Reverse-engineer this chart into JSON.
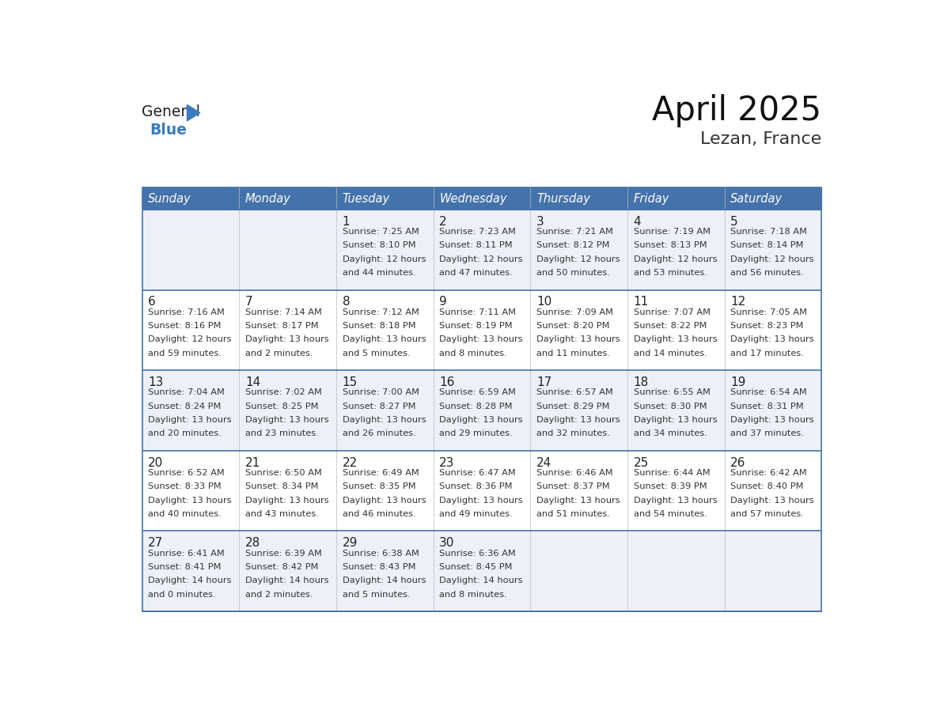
{
  "title": "April 2025",
  "subtitle": "Lezan, France",
  "header_color": "#4472aa",
  "header_text_color": "#ffffff",
  "odd_row_bg": "#edf1f7",
  "even_row_bg": "#ffffff",
  "border_color": "#4472aa",
  "row_line_color": "#4472aa",
  "text_color": "#222222",
  "info_text_color": "#333333",
  "days_of_week": [
    "Sunday",
    "Monday",
    "Tuesday",
    "Wednesday",
    "Thursday",
    "Friday",
    "Saturday"
  ],
  "logo_general_color": "#222222",
  "logo_blue_color": "#3a7abf",
  "logo_triangle_color": "#3a7abf",
  "weeks": [
    [
      {
        "day": "",
        "info": ""
      },
      {
        "day": "",
        "info": ""
      },
      {
        "day": "1",
        "info": "Sunrise: 7:25 AM\nSunset: 8:10 PM\nDaylight: 12 hours\nand 44 minutes."
      },
      {
        "day": "2",
        "info": "Sunrise: 7:23 AM\nSunset: 8:11 PM\nDaylight: 12 hours\nand 47 minutes."
      },
      {
        "day": "3",
        "info": "Sunrise: 7:21 AM\nSunset: 8:12 PM\nDaylight: 12 hours\nand 50 minutes."
      },
      {
        "day": "4",
        "info": "Sunrise: 7:19 AM\nSunset: 8:13 PM\nDaylight: 12 hours\nand 53 minutes."
      },
      {
        "day": "5",
        "info": "Sunrise: 7:18 AM\nSunset: 8:14 PM\nDaylight: 12 hours\nand 56 minutes."
      }
    ],
    [
      {
        "day": "6",
        "info": "Sunrise: 7:16 AM\nSunset: 8:16 PM\nDaylight: 12 hours\nand 59 minutes."
      },
      {
        "day": "7",
        "info": "Sunrise: 7:14 AM\nSunset: 8:17 PM\nDaylight: 13 hours\nand 2 minutes."
      },
      {
        "day": "8",
        "info": "Sunrise: 7:12 AM\nSunset: 8:18 PM\nDaylight: 13 hours\nand 5 minutes."
      },
      {
        "day": "9",
        "info": "Sunrise: 7:11 AM\nSunset: 8:19 PM\nDaylight: 13 hours\nand 8 minutes."
      },
      {
        "day": "10",
        "info": "Sunrise: 7:09 AM\nSunset: 8:20 PM\nDaylight: 13 hours\nand 11 minutes."
      },
      {
        "day": "11",
        "info": "Sunrise: 7:07 AM\nSunset: 8:22 PM\nDaylight: 13 hours\nand 14 minutes."
      },
      {
        "day": "12",
        "info": "Sunrise: 7:05 AM\nSunset: 8:23 PM\nDaylight: 13 hours\nand 17 minutes."
      }
    ],
    [
      {
        "day": "13",
        "info": "Sunrise: 7:04 AM\nSunset: 8:24 PM\nDaylight: 13 hours\nand 20 minutes."
      },
      {
        "day": "14",
        "info": "Sunrise: 7:02 AM\nSunset: 8:25 PM\nDaylight: 13 hours\nand 23 minutes."
      },
      {
        "day": "15",
        "info": "Sunrise: 7:00 AM\nSunset: 8:27 PM\nDaylight: 13 hours\nand 26 minutes."
      },
      {
        "day": "16",
        "info": "Sunrise: 6:59 AM\nSunset: 8:28 PM\nDaylight: 13 hours\nand 29 minutes."
      },
      {
        "day": "17",
        "info": "Sunrise: 6:57 AM\nSunset: 8:29 PM\nDaylight: 13 hours\nand 32 minutes."
      },
      {
        "day": "18",
        "info": "Sunrise: 6:55 AM\nSunset: 8:30 PM\nDaylight: 13 hours\nand 34 minutes."
      },
      {
        "day": "19",
        "info": "Sunrise: 6:54 AM\nSunset: 8:31 PM\nDaylight: 13 hours\nand 37 minutes."
      }
    ],
    [
      {
        "day": "20",
        "info": "Sunrise: 6:52 AM\nSunset: 8:33 PM\nDaylight: 13 hours\nand 40 minutes."
      },
      {
        "day": "21",
        "info": "Sunrise: 6:50 AM\nSunset: 8:34 PM\nDaylight: 13 hours\nand 43 minutes."
      },
      {
        "day": "22",
        "info": "Sunrise: 6:49 AM\nSunset: 8:35 PM\nDaylight: 13 hours\nand 46 minutes."
      },
      {
        "day": "23",
        "info": "Sunrise: 6:47 AM\nSunset: 8:36 PM\nDaylight: 13 hours\nand 49 minutes."
      },
      {
        "day": "24",
        "info": "Sunrise: 6:46 AM\nSunset: 8:37 PM\nDaylight: 13 hours\nand 51 minutes."
      },
      {
        "day": "25",
        "info": "Sunrise: 6:44 AM\nSunset: 8:39 PM\nDaylight: 13 hours\nand 54 minutes."
      },
      {
        "day": "26",
        "info": "Sunrise: 6:42 AM\nSunset: 8:40 PM\nDaylight: 13 hours\nand 57 minutes."
      }
    ],
    [
      {
        "day": "27",
        "info": "Sunrise: 6:41 AM\nSunset: 8:41 PM\nDaylight: 14 hours\nand 0 minutes."
      },
      {
        "day": "28",
        "info": "Sunrise: 6:39 AM\nSunset: 8:42 PM\nDaylight: 14 hours\nand 2 minutes."
      },
      {
        "day": "29",
        "info": "Sunrise: 6:38 AM\nSunset: 8:43 PM\nDaylight: 14 hours\nand 5 minutes."
      },
      {
        "day": "30",
        "info": "Sunrise: 6:36 AM\nSunset: 8:45 PM\nDaylight: 14 hours\nand 8 minutes."
      },
      {
        "day": "",
        "info": ""
      },
      {
        "day": "",
        "info": ""
      },
      {
        "day": "",
        "info": ""
      }
    ]
  ]
}
